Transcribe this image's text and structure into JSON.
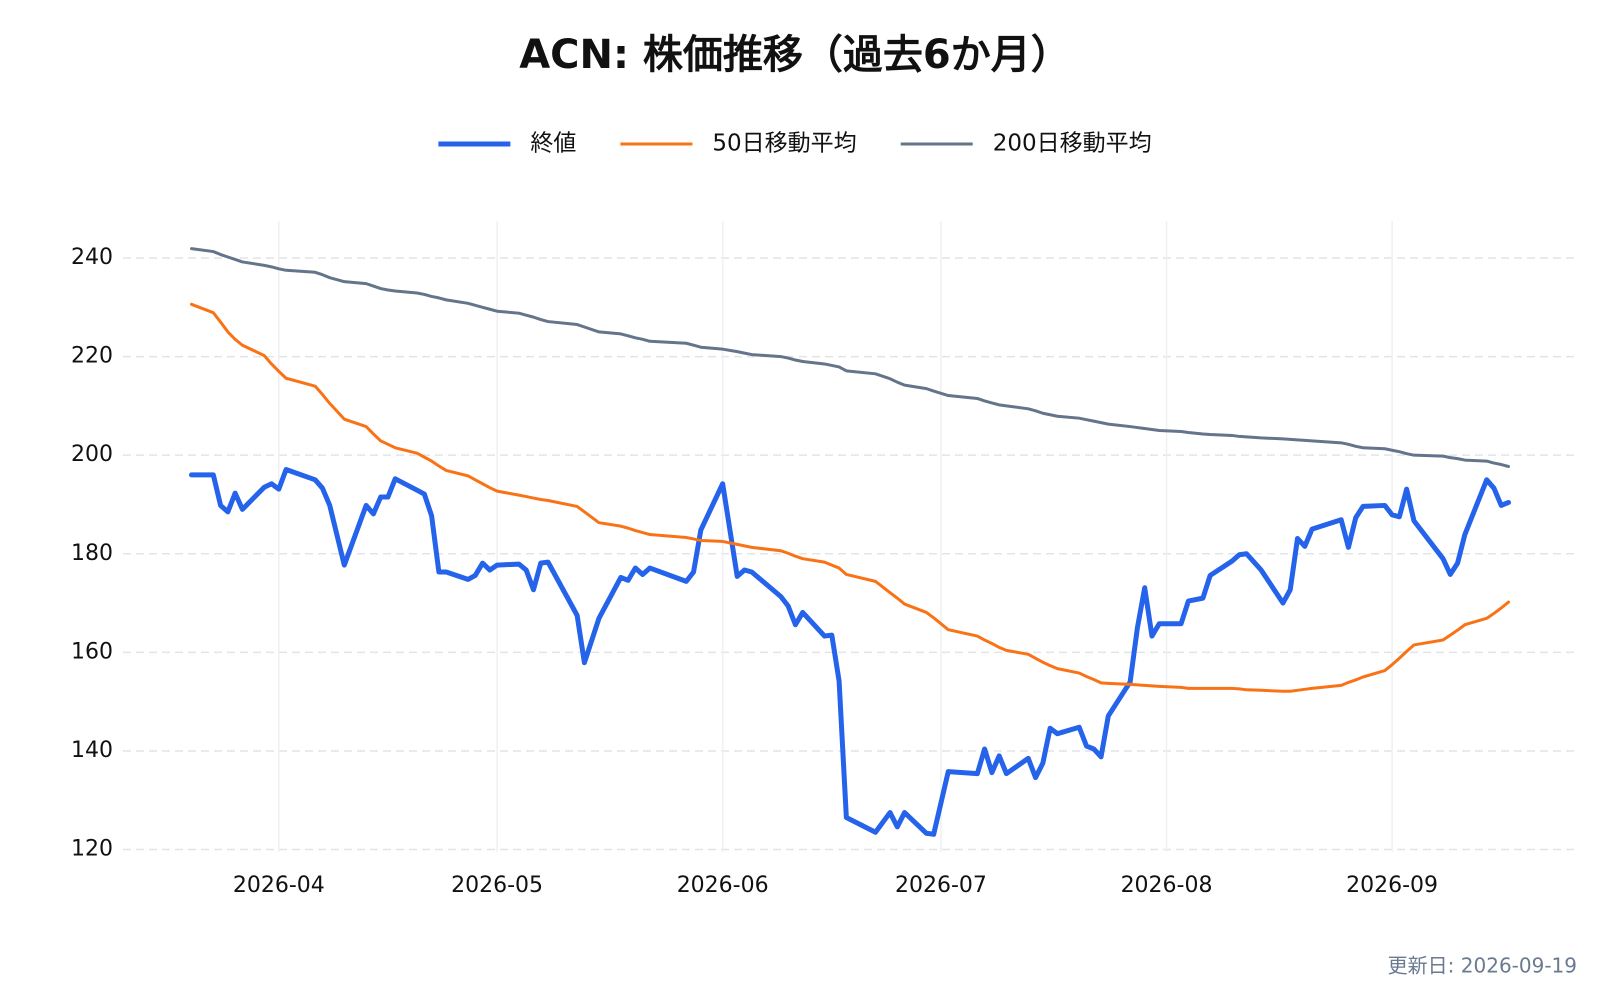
{
  "chart_data": {
    "type": "line",
    "title": "ACN: 株価推移（過去6か月）",
    "footer": "更新日: 2026-09-19",
    "legend": "top",
    "grid": true,
    "x": [
      "2026-03-20",
      "2026-03-23",
      "2026-03-24",
      "2026-03-25",
      "2026-03-26",
      "2026-03-27",
      "2026-03-30",
      "2026-03-31",
      "2026-04-01",
      "2026-04-02",
      "2026-04-06",
      "2026-04-07",
      "2026-04-08",
      "2026-04-10",
      "2026-04-13",
      "2026-04-14",
      "2026-04-15",
      "2026-04-16",
      "2026-04-17",
      "2026-04-20",
      "2026-04-21",
      "2026-04-22",
      "2026-04-23",
      "2026-04-24",
      "2026-04-27",
      "2026-04-28",
      "2026-04-29",
      "2026-04-30",
      "2026-05-01",
      "2026-05-04",
      "2026-05-05",
      "2026-05-06",
      "2026-05-07",
      "2026-05-08",
      "2026-05-12",
      "2026-05-13",
      "2026-05-15",
      "2026-05-18",
      "2026-05-19",
      "2026-05-20",
      "2026-05-21",
      "2026-05-22",
      "2026-05-27",
      "2026-05-28",
      "2026-05-29",
      "2026-06-01",
      "2026-06-03",
      "2026-06-04",
      "2026-06-05",
      "2026-06-09",
      "2026-06-10",
      "2026-06-11",
      "2026-06-12",
      "2026-06-15",
      "2026-06-16",
      "2026-06-17",
      "2026-06-18",
      "2026-06-22",
      "2026-06-24",
      "2026-06-25",
      "2026-06-26",
      "2026-06-29",
      "2026-06-30",
      "2026-07-02",
      "2026-07-06",
      "2026-07-07",
      "2026-07-08",
      "2026-07-09",
      "2026-07-10",
      "2026-07-13",
      "2026-07-14",
      "2026-07-15",
      "2026-07-16",
      "2026-07-17",
      "2026-07-20",
      "2026-07-21",
      "2026-07-22",
      "2026-07-23",
      "2026-07-24",
      "2026-07-27",
      "2026-07-28",
      "2026-07-29",
      "2026-07-30",
      "2026-07-31",
      "2026-08-03",
      "2026-08-04",
      "2026-08-06",
      "2026-08-07",
      "2026-08-10",
      "2026-08-11",
      "2026-08-12",
      "2026-08-14",
      "2026-08-17",
      "2026-08-18",
      "2026-08-19",
      "2026-08-20",
      "2026-08-21",
      "2026-08-25",
      "2026-08-26",
      "2026-08-27",
      "2026-08-28",
      "2026-08-31",
      "2026-09-01",
      "2026-09-02",
      "2026-09-03",
      "2026-09-04",
      "2026-09-08",
      "2026-09-09",
      "2026-09-10",
      "2026-09-11",
      "2026-09-14",
      "2026-09-15",
      "2026-09-16",
      "2026-09-17"
    ],
    "series": [
      {
        "name": "終値",
        "color": "#2563eb",
        "width": 5,
        "values": [
          196,
          196,
          189.8,
          188.5,
          192.3,
          189,
          193.5,
          194.2,
          193.1,
          197.1,
          195,
          193.3,
          189.8,
          177.7,
          189.8,
          188.1,
          191.5,
          191.5,
          195.2,
          192.9,
          192.1,
          187.7,
          176.3,
          176.3,
          174.8,
          175.6,
          178.1,
          176.7,
          177.7,
          177.9,
          176.7,
          172.7,
          178.1,
          178.3,
          167.5,
          157.9,
          166.9,
          175.2,
          174.6,
          177.1,
          175.8,
          177.1,
          174.4,
          176.3,
          184.8,
          194.2,
          175.4,
          176.7,
          176.3,
          171.3,
          169.4,
          165.6,
          168.1,
          163.3,
          163.5,
          154.2,
          126.5,
          123.5,
          127.5,
          124.6,
          127.5,
          123.3,
          123.1,
          135.8,
          135.4,
          140.4,
          135.6,
          139,
          135.4,
          138.5,
          134.6,
          137.5,
          144.6,
          143.5,
          144.8,
          141,
          140.4,
          138.8,
          147.1,
          154,
          165,
          173.1,
          163.3,
          165.8,
          165.8,
          170.4,
          171,
          175.6,
          178.5,
          179.8,
          180,
          176.7,
          170,
          172.7,
          183.1,
          181.5,
          185,
          186.9,
          181.3,
          187.3,
          189.6,
          189.8,
          187.9,
          187.5,
          193.1,
          186.7,
          179,
          175.8,
          178.1,
          183.9,
          195,
          193.3,
          189.8,
          190.4
        ]
      },
      {
        "name": "50日移動平均",
        "color": "#f97316",
        "width": 3,
        "values": [
          230.6,
          228.9,
          227,
          225,
          223.5,
          222.3,
          220.2,
          218.5,
          217,
          215.6,
          214,
          212.3,
          210.5,
          207.3,
          205.8,
          204.3,
          202.9,
          202.2,
          201.5,
          200.4,
          199.6,
          198.8,
          197.8,
          196.9,
          195.8,
          195,
          194.2,
          193.4,
          192.7,
          191.9,
          191.6,
          191.3,
          191,
          190.8,
          189.6,
          188.5,
          186.3,
          185.6,
          185.2,
          184.7,
          184.3,
          183.9,
          183.3,
          183,
          182.7,
          182.5,
          181.9,
          181.6,
          181.3,
          180.6,
          180.1,
          179.5,
          179,
          178.3,
          177.7,
          177.1,
          175.8,
          174.4,
          172.1,
          171,
          169.8,
          168.1,
          167,
          164.6,
          163.3,
          162.5,
          161.8,
          161,
          160.4,
          159.6,
          158.8,
          158,
          157.3,
          156.7,
          155.8,
          155.1,
          154.5,
          153.8,
          153.7,
          153.5,
          153.4,
          153.3,
          153.2,
          153.1,
          152.9,
          152.7,
          152.7,
          152.7,
          152.7,
          152.6,
          152.4,
          152.3,
          152.1,
          152.1,
          152.3,
          152.5,
          152.7,
          153.3,
          153.9,
          154.4,
          155,
          156.3,
          157.5,
          158.8,
          160.2,
          161.5,
          162.5,
          163.5,
          164.5,
          165.6,
          166.9,
          167.9,
          169,
          170.2
        ]
      },
      {
        "name": "200日移動平均",
        "color": "#64748b",
        "width": 3,
        "values": [
          241.9,
          241.3,
          240.7,
          240.2,
          239.7,
          239.2,
          238.5,
          238.2,
          237.8,
          237.5,
          237.1,
          236.6,
          236,
          235.2,
          234.8,
          234.3,
          233.8,
          233.5,
          233.3,
          232.9,
          232.6,
          232.2,
          231.9,
          231.5,
          230.8,
          230.4,
          230,
          229.6,
          229.2,
          228.8,
          228.4,
          228,
          227.5,
          227.1,
          226.5,
          226,
          225,
          224.6,
          224.2,
          223.8,
          223.5,
          223.1,
          222.7,
          222.3,
          221.9,
          221.5,
          221,
          220.7,
          220.4,
          220,
          219.7,
          219.3,
          219,
          218.5,
          218.2,
          217.9,
          217.1,
          216.5,
          215.5,
          214.8,
          214.2,
          213.5,
          213,
          212.1,
          211.5,
          211,
          210.6,
          210.2,
          210,
          209.4,
          209,
          208.5,
          208.2,
          207.9,
          207.5,
          207.2,
          206.9,
          206.6,
          206.3,
          205.8,
          205.6,
          205.4,
          205.2,
          205,
          204.8,
          204.6,
          204.3,
          204.2,
          204,
          203.8,
          203.7,
          203.5,
          203.3,
          203.2,
          203.1,
          203,
          202.9,
          202.5,
          202.2,
          201.8,
          201.5,
          201.3,
          201,
          200.7,
          200.3,
          200,
          199.8,
          199.5,
          199.3,
          199,
          198.8,
          198.4,
          198.1,
          197.7
        ]
      }
    ],
    "xticks": [
      "2026-04",
      "2026-05",
      "2026-06",
      "2026-07",
      "2026-08",
      "2026-09"
    ],
    "ylim": [
      119.5,
      247.5
    ],
    "yticks": [
      120,
      140,
      160,
      180,
      200,
      220,
      240
    ]
  }
}
